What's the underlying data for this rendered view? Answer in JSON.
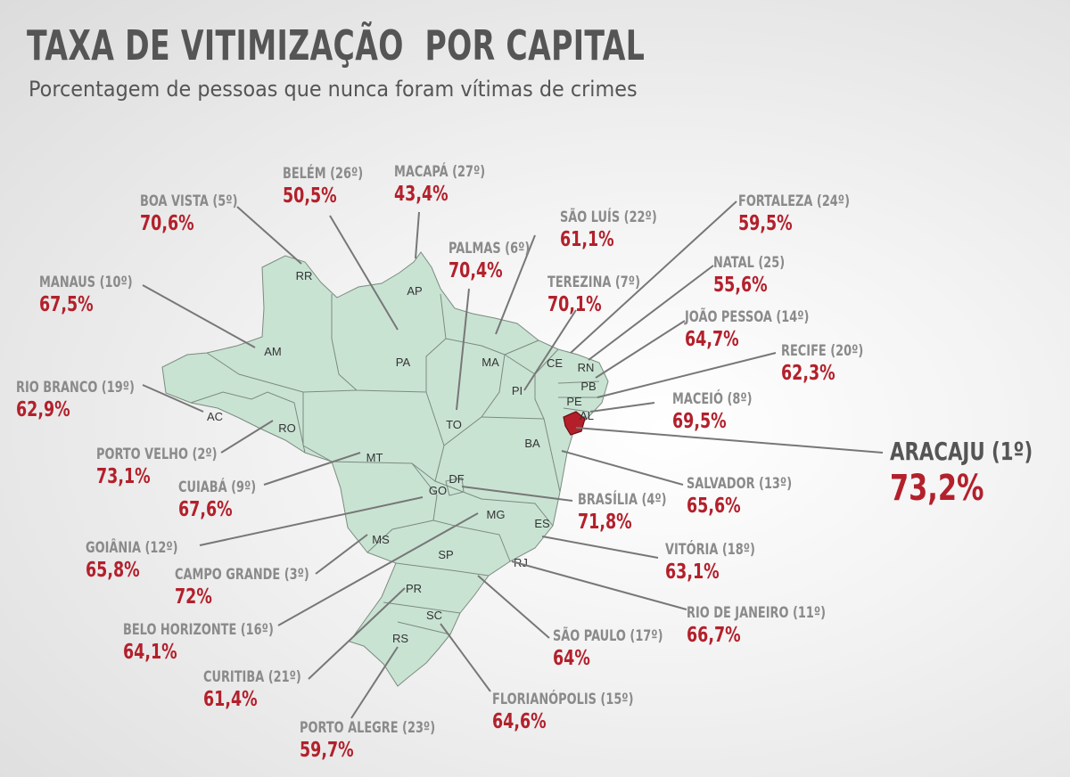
{
  "header": {
    "title": "TAXA DE VITIMIZAÇÃO  POR CAPITAL",
    "subtitle": "Porcentagem de pessoas que nunca foram vítimas de crimes"
  },
  "colors": {
    "map_fill": "#c9e3d3",
    "highlight": "#b41f2a",
    "value_text": "#b3202b",
    "label_text": "#8a8a8a"
  },
  "states": [
    "RR",
    "AP",
    "AM",
    "PA",
    "MA",
    "CE",
    "RN",
    "PB",
    "PE",
    "AL",
    "SE",
    "PI",
    "TO",
    "BA",
    "AC",
    "RO",
    "MT",
    "GO",
    "DF",
    "MG",
    "ES",
    "MS",
    "SP",
    "RJ",
    "PR",
    "SC",
    "RS"
  ],
  "highlighted_state": "SE",
  "capitals": [
    {
      "uf": "RR",
      "name": "BOA VISTA (5º)",
      "value": "70,6%"
    },
    {
      "uf": "PA",
      "name": "BELÉM (26º)",
      "value": "50,5%"
    },
    {
      "uf": "AP",
      "name": "MACAPÁ (27º)",
      "value": "43,4%"
    },
    {
      "uf": "MA",
      "name": "SÃO LUÍS (22º)",
      "value": "61,1%"
    },
    {
      "uf": "CE",
      "name": "FORTALEZA (24º)",
      "value": "59,5%"
    },
    {
      "uf": "TO",
      "name": "PALMAS (6º)",
      "value": "70,4%"
    },
    {
      "uf": "RN",
      "name": "NATAL (25)",
      "value": "55,6%"
    },
    {
      "uf": "AM",
      "name": "MANAUS (10º)",
      "value": "67,5%"
    },
    {
      "uf": "PI",
      "name": "TEREZINA (7º)",
      "value": "70,1%"
    },
    {
      "uf": "PB",
      "name": "JOÃO PESSOA (14º)",
      "value": "64,7%"
    },
    {
      "uf": "PE",
      "name": "RECIFE (20º)",
      "value": "62,3%"
    },
    {
      "uf": "AC",
      "name": "RIO BRANCO (19º)",
      "value": "62,9%"
    },
    {
      "uf": "AL",
      "name": "MACEIÓ (8º)",
      "value": "69,5%"
    },
    {
      "uf": "SE",
      "name": "ARACAJU (1º)",
      "value": "73,2%"
    },
    {
      "uf": "RO",
      "name": "PORTO VELHO (2º)",
      "value": "73,1%"
    },
    {
      "uf": "MT",
      "name": "CUIABÁ (9º)",
      "value": "67,6%"
    },
    {
      "uf": "BA",
      "name": "SALVADOR (13º)",
      "value": "65,6%"
    },
    {
      "uf": "DF",
      "name": "BRASÍLIA (4º)",
      "value": "71,8%"
    },
    {
      "uf": "GO",
      "name": "GOIÂNIA (12º)",
      "value": "65,8%"
    },
    {
      "uf": "ES",
      "name": "VITÓRIA (18º)",
      "value": "63,1%"
    },
    {
      "uf": "MS",
      "name": "CAMPO GRANDE (3º)",
      "value": "72%"
    },
    {
      "uf": "RJ",
      "name": "RIO DE JANEIRO (11º)",
      "value": "66,7%"
    },
    {
      "uf": "MG",
      "name": "BELO HORIZONTE (16º)",
      "value": "64,1%"
    },
    {
      "uf": "SP",
      "name": "SÃO PAULO (17º)",
      "value": "64%"
    },
    {
      "uf": "PR",
      "name": "CURITIBA (21º)",
      "value": "61,4%"
    },
    {
      "uf": "SC",
      "name": "FLORIANÓPOLIS (15º)",
      "value": "64,6%"
    },
    {
      "uf": "RS",
      "name": "PORTO ALEGRE (23º)",
      "value": "59,7%"
    }
  ]
}
